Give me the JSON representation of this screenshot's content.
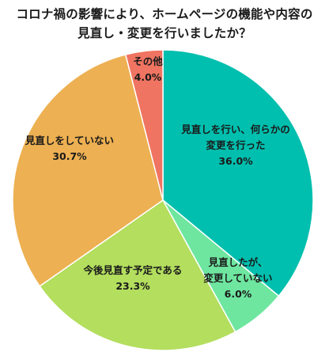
{
  "title_lines": [
    "コロナ禍の影響により、ホームページの機能や内容の",
    "見直し・変更を行いましたか？"
  ],
  "chart_data": {
    "type": "pie",
    "title": "コロナ禍の影響により、ホームページの機能や内容の見直し・変更を行いましたか？",
    "slices": [
      {
        "label_lines": [
          "見直しを行い、何らかの",
          "変更を行った"
        ],
        "value": 36.0,
        "value_label": "36.0%",
        "color": "#00BFAE"
      },
      {
        "label_lines": [
          "見直したが、",
          "変更していない"
        ],
        "value": 6.0,
        "value_label": "6.0%",
        "color": "#6EE6A0"
      },
      {
        "label_lines": [
          "今後見直す予定である"
        ],
        "value": 23.3,
        "value_label": "23.3%",
        "color": "#B3DE5E"
      },
      {
        "label_lines": [
          "見直しをしていない"
        ],
        "value": 30.7,
        "value_label": "30.7%",
        "color": "#EDB052"
      },
      {
        "label_lines": [
          "その他"
        ],
        "value": 4.0,
        "value_label": "4.0%",
        "color": "#EF7461"
      }
    ],
    "start_angle": "12 o'clock",
    "direction": "clockwise",
    "legend": "none"
  }
}
